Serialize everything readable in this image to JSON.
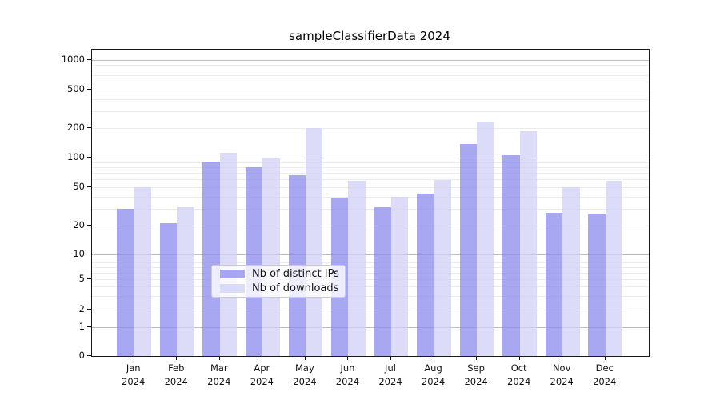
{
  "figure": {
    "title": "sampleClassifierData 2024",
    "background_color": "#ffffff"
  },
  "chart_data": {
    "type": "bar",
    "title": "sampleClassifierData 2024",
    "categories": [
      "Jan 2024",
      "Feb 2024",
      "Mar 2024",
      "Apr 2024",
      "May 2024",
      "Jun 2024",
      "Jul 2024",
      "Aug 2024",
      "Sep 2024",
      "Oct 2024",
      "Nov 2024",
      "Dec 2024"
    ],
    "series": [
      {
        "name": "Nb of distinct IPs",
        "color": "rgba(138,138,238,0.75)",
        "values": [
          30,
          21,
          92,
          80,
          67,
          39,
          31,
          43,
          137,
          106,
          27,
          26
        ]
      },
      {
        "name": "Nb of downloads",
        "color": "rgba(208,208,247,0.75)",
        "values": [
          50,
          31,
          112,
          100,
          200,
          58,
          40,
          60,
          235,
          188,
          50,
          58
        ]
      }
    ],
    "yscale": "symlog",
    "y_ticks": [
      0,
      1,
      2,
      5,
      10,
      20,
      50,
      100,
      200,
      500,
      1000
    ],
    "y_minor_gridlines": [
      2,
      3,
      4,
      5,
      6,
      7,
      8,
      9,
      20,
      30,
      40,
      50,
      60,
      70,
      80,
      90,
      200,
      300,
      400,
      500,
      600,
      700,
      800,
      900
    ],
    "y_major_gridlines": [
      1,
      10,
      100,
      1000
    ],
    "ylim": [
      0,
      1300
    ],
    "xlabel": "",
    "ylabel": "",
    "grid": true,
    "legend": {
      "position": "lower-center",
      "items": [
        "Nb of distinct IPs",
        "Nb of downloads"
      ]
    }
  }
}
